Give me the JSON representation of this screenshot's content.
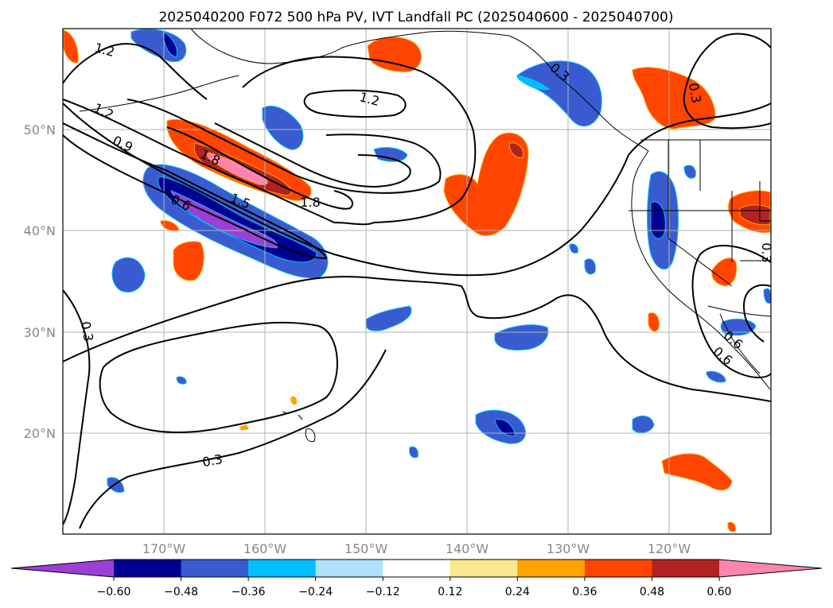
{
  "title": "2025040200 F072 500 hPa PV, IVT Landfall PC (2025040600 - 2025040700)",
  "axes": {
    "lat_labels": [
      "50°N",
      "40°N",
      "30°N",
      "20°N"
    ],
    "lon_labels": [
      "170°W",
      "160°W",
      "150°W",
      "140°W",
      "130°W",
      "120°W"
    ]
  },
  "contour_labels": [
    "1.2",
    "1.2",
    "1.2",
    "0.9",
    "1.8",
    "1.5",
    "1.8",
    "0.6",
    "0.3",
    "0.3",
    "0.3",
    "0.3",
    "0.6",
    "0.6",
    "0.3"
  ],
  "colorbar": {
    "ticks": [
      "−0.60",
      "−0.48",
      "−0.36",
      "−0.24",
      "−0.12",
      "0.12",
      "0.24",
      "0.36",
      "0.48",
      "0.60"
    ],
    "colors": [
      "#9b3fd6",
      "#000090",
      "#3a5bd0",
      "#00bfff",
      "#aee1fa",
      "#ffffff",
      "#fbe88c",
      "#ffa300",
      "#ff4500",
      "#b22222",
      "#ff85b0"
    ]
  },
  "chart_data": {
    "type": "contour map",
    "title": "2025040200 F072 500 hPa PV, IVT Landfall PC (2025040600 - 2025040700)",
    "lat_range_deg": [
      10,
      60
    ],
    "lon_range_deg": [
      -180,
      -110
    ],
    "contour_levels": [
      0.3,
      0.6,
      0.9,
      1.2,
      1.5,
      1.8
    ],
    "fill_levels": [
      -0.6,
      -0.48,
      -0.36,
      -0.24,
      -0.12,
      0.12,
      0.24,
      0.36,
      0.48,
      0.6
    ],
    "grid": true
  }
}
